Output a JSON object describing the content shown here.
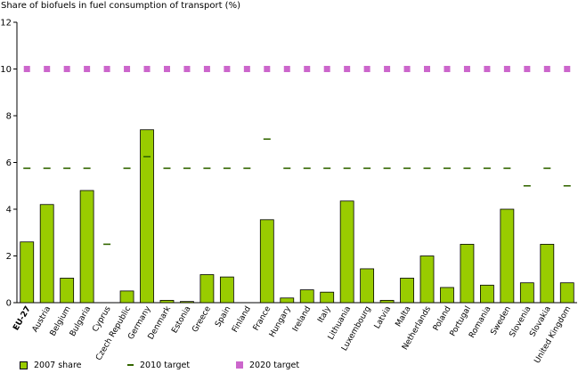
{
  "chart_data": {
    "type": "bar",
    "title": "Share of biofuels in fuel consumption of transport (%)",
    "xlabel": "",
    "ylabel": "",
    "ylim": [
      0,
      12
    ],
    "yticks": [
      0,
      2,
      4,
      6,
      8,
      10,
      12
    ],
    "grid": false,
    "categories": [
      "EU-27",
      "Austria",
      "Belgium",
      "Bulgaria",
      "Cyprus",
      "Czech Republic",
      "Germany",
      "Denmark",
      "Estonia",
      "Greece",
      "Spain",
      "Finland",
      "France",
      "Hungary",
      "Ireland",
      "Italy",
      "Lithuania",
      "Luxembourg",
      "Latvia",
      "Malta",
      "Netherlands",
      "Poland",
      "Portugal",
      "Romania",
      "Sweden",
      "Slovenia",
      "Slovakia",
      "United Kingdom"
    ],
    "series": [
      {
        "name": "2007 share",
        "kind": "bar",
        "color": "#99cc00",
        "values": [
          2.6,
          4.2,
          1.05,
          4.8,
          0,
          0.5,
          7.4,
          0.1,
          0.05,
          1.2,
          1.1,
          0,
          3.55,
          0.2,
          0.55,
          0.45,
          4.35,
          1.45,
          0.1,
          1.05,
          2.0,
          0.65,
          2.5,
          0.75,
          4.0,
          0.85,
          2.5,
          0.85
        ]
      },
      {
        "name": "2010 target",
        "kind": "dash",
        "color": "#336600",
        "values": [
          5.75,
          5.75,
          5.75,
          5.75,
          2.5,
          5.75,
          6.25,
          5.75,
          5.75,
          5.75,
          5.75,
          5.75,
          7.0,
          5.75,
          5.75,
          5.75,
          5.75,
          5.75,
          5.75,
          5.75,
          5.75,
          5.75,
          5.75,
          5.75,
          5.75,
          5.0,
          5.75,
          5.0
        ]
      },
      {
        "name": "2020 target",
        "kind": "square",
        "color": "#cc66cc",
        "values": [
          10,
          10,
          10,
          10,
          10,
          10,
          10,
          10,
          10,
          10,
          10,
          10,
          10,
          10,
          10,
          10,
          10,
          10,
          10,
          10,
          10,
          10,
          10,
          10,
          10,
          10,
          10,
          10
        ]
      }
    ],
    "legend": {
      "position": "bottom"
    }
  }
}
